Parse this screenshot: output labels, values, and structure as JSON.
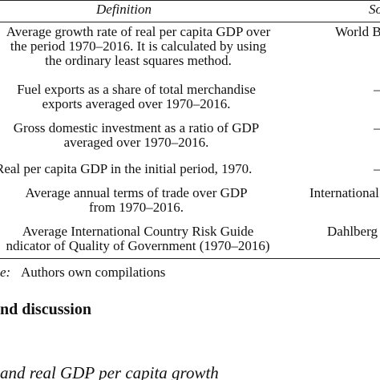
{
  "table": {
    "headers": {
      "definition": "Definition",
      "source": "So"
    },
    "rows": [
      {
        "definition": "Average growth rate of real per capita GDP over\nthe period 1970–2016. It is calculated by using\nthe ordinary least squares method.",
        "source": "World B"
      },
      {
        "definition": "Fuel exports as a share of total merchandise\nexports averaged over 1970–2016.",
        "source": "–"
      },
      {
        "definition": "Gross domestic investment as a ratio of GDP\naveraged over 1970–2016.",
        "source": "–"
      },
      {
        "definition": "Real per capita GDP in the initial period, 1970.",
        "source": "–"
      },
      {
        "definition": "Average annual terms of trade over GDP\nfrom 1970–2016.",
        "source": "International"
      },
      {
        "definition": "Average International Country Risk Guide\nndicator of Quality of Government (1970–2016)",
        "source": "Dahlberg"
      }
    ]
  },
  "note": {
    "label": "e:",
    "text": "Authors own compilations"
  },
  "section_heading": "nd discussion",
  "subsection_heading": "and real GDP per capita growth"
}
